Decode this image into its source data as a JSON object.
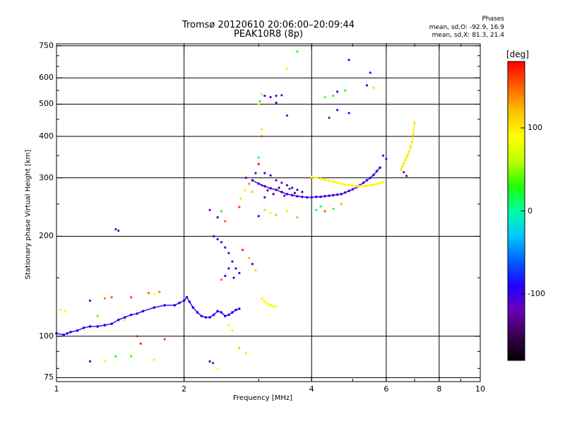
{
  "header": {
    "title_line1": "Tromsø 20120610 20:06:00–20:09:44",
    "title_line2": "PEAK10R8 (8p)",
    "phases_title": "Phases",
    "phases_o": "mean, sd,O: -92.9, 16.9",
    "phases_x": "mean, sd,X: 81.3, 21.4"
  },
  "colorbar": {
    "unit_label": "[deg]",
    "tick_labels": [
      "100",
      "0",
      "-100"
    ],
    "tick_values": [
      100,
      0,
      -100
    ],
    "range": [
      -180,
      180
    ],
    "colors": [
      "#000000",
      "#3a004f",
      "#6a00b5",
      "#2000ff",
      "#0060ff",
      "#00c8ff",
      "#00ffa0",
      "#20ff00",
      "#c0ff00",
      "#ffff00",
      "#ffc000",
      "#ff6000",
      "#ff0000"
    ]
  },
  "chart_data": {
    "type": "scatter",
    "title": "Tromsø 20120610 20:06:00–20:09:44",
    "subtitle": "PEAK10R8 (8p)",
    "xlabel": "Frequency [MHz]",
    "ylabel": "Stationary phase Virtual Height [km]",
    "xscale": "log",
    "yscale": "log",
    "xlim": [
      1,
      10
    ],
    "ylim": [
      73,
      760
    ],
    "x_ticks": [
      1,
      2,
      4,
      6,
      8,
      10
    ],
    "x_tick_labels": [
      "1",
      "2",
      "4",
      "6",
      "8",
      "10"
    ],
    "y_ticks": [
      75,
      100,
      200,
      300,
      400,
      500,
      600,
      750
    ],
    "y_tick_labels": [
      "75",
      "100",
      "200",
      "300",
      "400",
      "500",
      "600",
      "750"
    ],
    "grid": true,
    "color_by": "phase [deg]",
    "traces": [
      {
        "phase": -92,
        "x": [
          1.0,
          1.04,
          1.06,
          1.08,
          1.12,
          1.16,
          1.2,
          1.25,
          1.3,
          1.35,
          1.4,
          1.45,
          1.5,
          1.55,
          1.6,
          1.7,
          1.8,
          1.9,
          1.95,
          2.0,
          2.03,
          2.06,
          2.1,
          2.15,
          2.2,
          2.25,
          2.3,
          2.35,
          2.4,
          2.45,
          2.5,
          2.55,
          2.6,
          2.65,
          2.7
        ],
        "y": [
          102,
          101,
          102,
          103,
          104,
          106,
          107,
          107,
          108,
          109,
          112,
          114,
          116,
          117,
          119,
          122,
          124,
          124,
          126,
          128,
          131,
          127,
          122,
          118,
          115,
          114,
          114,
          116,
          119,
          118,
          115,
          116,
          118,
          120,
          121
        ]
      },
      {
        "phase": -105,
        "x": [
          2.9,
          3.0,
          3.1,
          3.2,
          3.3,
          3.4,
          3.5,
          3.6,
          3.7,
          3.8,
          3.9,
          4.0,
          4.1,
          4.2,
          4.3,
          4.4,
          4.5,
          4.6,
          4.7,
          4.8,
          4.9,
          5.0,
          5.1,
          5.2,
          5.3,
          5.4,
          5.5,
          5.6,
          5.7,
          5.8
        ],
        "y": [
          295,
          288,
          283,
          279,
          276,
          272,
          268,
          266,
          264,
          263,
          262,
          262,
          263,
          263,
          264,
          265,
          266,
          267,
          268,
          271,
          274,
          277,
          281,
          285,
          290,
          295,
          300,
          306,
          314,
          322
        ]
      },
      {
        "phase": 95,
        "x": [
          4.0,
          4.1,
          4.2,
          4.3,
          4.4,
          4.5,
          4.6,
          4.7,
          4.8,
          4.9,
          5.0,
          5.1,
          5.2,
          5.3,
          5.4,
          5.5,
          5.6,
          5.7,
          5.8,
          5.9
        ],
        "y": [
          302,
          300,
          298,
          296,
          294,
          292,
          290,
          288,
          286,
          285,
          284,
          283,
          283,
          283,
          284,
          285,
          286,
          287,
          289,
          291
        ]
      },
      {
        "phase": 100,
        "x": [
          6.5,
          6.55,
          6.6,
          6.65,
          6.7,
          6.75,
          6.8,
          6.85,
          6.9,
          6.95,
          7.0
        ],
        "y": [
          318,
          325,
          332,
          340,
          346,
          352,
          360,
          372,
          385,
          405,
          440
        ]
      },
      {
        "phase": 90,
        "x": [
          3.05,
          3.1,
          3.15,
          3.2,
          3.25,
          3.3
        ],
        "y": [
          130,
          127,
          125,
          124,
          123,
          123
        ]
      }
    ],
    "scatter_points": [
      {
        "x": 1.38,
        "y": 210,
        "phase": -110
      },
      {
        "x": 1.4,
        "y": 208,
        "phase": -105
      },
      {
        "x": 1.02,
        "y": 120,
        "phase": 85
      },
      {
        "x": 1.05,
        "y": 119,
        "phase": 95
      },
      {
        "x": 1.2,
        "y": 128,
        "phase": -100
      },
      {
        "x": 1.3,
        "y": 130,
        "phase": 140
      },
      {
        "x": 1.35,
        "y": 131,
        "phase": 155
      },
      {
        "x": 1.5,
        "y": 131,
        "phase": 160
      },
      {
        "x": 1.65,
        "y": 135,
        "phase": 150
      },
      {
        "x": 1.7,
        "y": 134,
        "phase": 80
      },
      {
        "x": 1.75,
        "y": 136,
        "phase": 145
      },
      {
        "x": 1.25,
        "y": 115,
        "phase": 40
      },
      {
        "x": 1.45,
        "y": 112,
        "phase": 100
      },
      {
        "x": 1.55,
        "y": 100,
        "phase": 175
      },
      {
        "x": 1.8,
        "y": 98,
        "phase": 160
      },
      {
        "x": 1.2,
        "y": 84,
        "phase": -105
      },
      {
        "x": 1.3,
        "y": 84,
        "phase": 80
      },
      {
        "x": 1.38,
        "y": 87,
        "phase": 30
      },
      {
        "x": 1.5,
        "y": 87,
        "phase": 35
      },
      {
        "x": 1.7,
        "y": 85,
        "phase": 100
      },
      {
        "x": 1.58,
        "y": 95,
        "phase": 170
      },
      {
        "x": 2.3,
        "y": 84,
        "phase": -130
      },
      {
        "x": 2.34,
        "y": 83,
        "phase": -120
      },
      {
        "x": 2.4,
        "y": 80,
        "phase": 90
      },
      {
        "x": 2.7,
        "y": 92,
        "phase": 50
      },
      {
        "x": 2.8,
        "y": 89,
        "phase": 100
      },
      {
        "x": 2.55,
        "y": 108,
        "phase": 80
      },
      {
        "x": 2.6,
        "y": 104,
        "phase": 60
      },
      {
        "x": 2.35,
        "y": 200,
        "phase": -100
      },
      {
        "x": 2.4,
        "y": 196,
        "phase": -95
      },
      {
        "x": 2.45,
        "y": 192,
        "phase": -105
      },
      {
        "x": 2.5,
        "y": 185,
        "phase": -100
      },
      {
        "x": 2.55,
        "y": 178,
        "phase": -110
      },
      {
        "x": 2.6,
        "y": 168,
        "phase": -100
      },
      {
        "x": 2.65,
        "y": 160,
        "phase": -105
      },
      {
        "x": 2.7,
        "y": 155,
        "phase": -95
      },
      {
        "x": 2.55,
        "y": 160,
        "phase": -90
      },
      {
        "x": 2.62,
        "y": 150,
        "phase": -100
      },
      {
        "x": 2.5,
        "y": 152,
        "phase": -85
      },
      {
        "x": 2.45,
        "y": 148,
        "phase": 150
      },
      {
        "x": 2.75,
        "y": 182,
        "phase": 170
      },
      {
        "x": 2.85,
        "y": 172,
        "phase": 120
      },
      {
        "x": 2.9,
        "y": 165,
        "phase": -100
      },
      {
        "x": 2.95,
        "y": 158,
        "phase": 110
      },
      {
        "x": 2.3,
        "y": 240,
        "phase": -120
      },
      {
        "x": 2.4,
        "y": 228,
        "phase": -90
      },
      {
        "x": 2.5,
        "y": 222,
        "phase": 150
      },
      {
        "x": 2.45,
        "y": 238,
        "phase": 20
      },
      {
        "x": 2.7,
        "y": 245,
        "phase": 160
      },
      {
        "x": 2.72,
        "y": 260,
        "phase": 60
      },
      {
        "x": 2.78,
        "y": 275,
        "phase": 100
      },
      {
        "x": 2.8,
        "y": 300,
        "phase": -120
      },
      {
        "x": 2.85,
        "y": 288,
        "phase": 140
      },
      {
        "x": 2.9,
        "y": 272,
        "phase": 50
      },
      {
        "x": 2.95,
        "y": 310,
        "phase": -110
      },
      {
        "x": 3.0,
        "y": 330,
        "phase": 175
      },
      {
        "x": 3.0,
        "y": 345,
        "phase": 10
      },
      {
        "x": 3.05,
        "y": 400,
        "phase": 160
      },
      {
        "x": 3.05,
        "y": 420,
        "phase": 100
      },
      {
        "x": 3.0,
        "y": 500,
        "phase": 90
      },
      {
        "x": 3.02,
        "y": 510,
        "phase": 20
      },
      {
        "x": 3.05,
        "y": 535,
        "phase": 60
      },
      {
        "x": 3.1,
        "y": 530,
        "phase": -100
      },
      {
        "x": 3.2,
        "y": 525,
        "phase": -110
      },
      {
        "x": 3.3,
        "y": 530,
        "phase": -95
      },
      {
        "x": 3.4,
        "y": 532,
        "phase": -120
      },
      {
        "x": 3.3,
        "y": 505,
        "phase": -105
      },
      {
        "x": 3.5,
        "y": 462,
        "phase": -120
      },
      {
        "x": 3.5,
        "y": 640,
        "phase": 100
      },
      {
        "x": 3.7,
        "y": 720,
        "phase": 30
      },
      {
        "x": 3.1,
        "y": 240,
        "phase": 110
      },
      {
        "x": 3.2,
        "y": 235,
        "phase": 95
      },
      {
        "x": 3.3,
        "y": 232,
        "phase": 120
      },
      {
        "x": 3.5,
        "y": 238,
        "phase": 100
      },
      {
        "x": 3.0,
        "y": 230,
        "phase": -95
      },
      {
        "x": 3.7,
        "y": 228,
        "phase": 40
      },
      {
        "x": 3.1,
        "y": 310,
        "phase": -100
      },
      {
        "x": 3.2,
        "y": 305,
        "phase": -90
      },
      {
        "x": 3.3,
        "y": 295,
        "phase": -110
      },
      {
        "x": 3.4,
        "y": 290,
        "phase": -120
      },
      {
        "x": 3.5,
        "y": 285,
        "phase": -100
      },
      {
        "x": 3.6,
        "y": 280,
        "phase": -115
      },
      {
        "x": 3.7,
        "y": 276,
        "phase": -95
      },
      {
        "x": 3.8,
        "y": 272,
        "phase": -130
      },
      {
        "x": 3.15,
        "y": 275,
        "phase": -140
      },
      {
        "x": 3.25,
        "y": 268,
        "phase": -135
      },
      {
        "x": 3.35,
        "y": 280,
        "phase": -150
      },
      {
        "x": 3.45,
        "y": 265,
        "phase": -125
      },
      {
        "x": 3.55,
        "y": 278,
        "phase": -110
      },
      {
        "x": 3.65,
        "y": 270,
        "phase": -140
      },
      {
        "x": 3.05,
        "y": 285,
        "phase": -120
      },
      {
        "x": 3.1,
        "y": 262,
        "phase": -100
      },
      {
        "x": 4.1,
        "y": 240,
        "phase": 20
      },
      {
        "x": 4.2,
        "y": 246,
        "phase": 10
      },
      {
        "x": 4.3,
        "y": 238,
        "phase": 150
      },
      {
        "x": 4.5,
        "y": 242,
        "phase": 30
      },
      {
        "x": 4.7,
        "y": 250,
        "phase": 130
      },
      {
        "x": 4.3,
        "y": 525,
        "phase": 40
      },
      {
        "x": 4.5,
        "y": 530,
        "phase": 30
      },
      {
        "x": 4.6,
        "y": 545,
        "phase": -100
      },
      {
        "x": 4.8,
        "y": 550,
        "phase": 10
      },
      {
        "x": 4.6,
        "y": 480,
        "phase": -110
      },
      {
        "x": 4.9,
        "y": 470,
        "phase": -90
      },
      {
        "x": 4.4,
        "y": 455,
        "phase": -120
      },
      {
        "x": 4.9,
        "y": 680,
        "phase": -100
      },
      {
        "x": 5.5,
        "y": 622,
        "phase": -110
      },
      {
        "x": 5.4,
        "y": 570,
        "phase": -100
      },
      {
        "x": 5.6,
        "y": 560,
        "phase": 110
      },
      {
        "x": 6.6,
        "y": 312,
        "phase": -120
      },
      {
        "x": 6.7,
        "y": 304,
        "phase": -130
      },
      {
        "x": 5.9,
        "y": 350,
        "phase": -100
      },
      {
        "x": 6.0,
        "y": 342,
        "phase": -110
      }
    ]
  }
}
